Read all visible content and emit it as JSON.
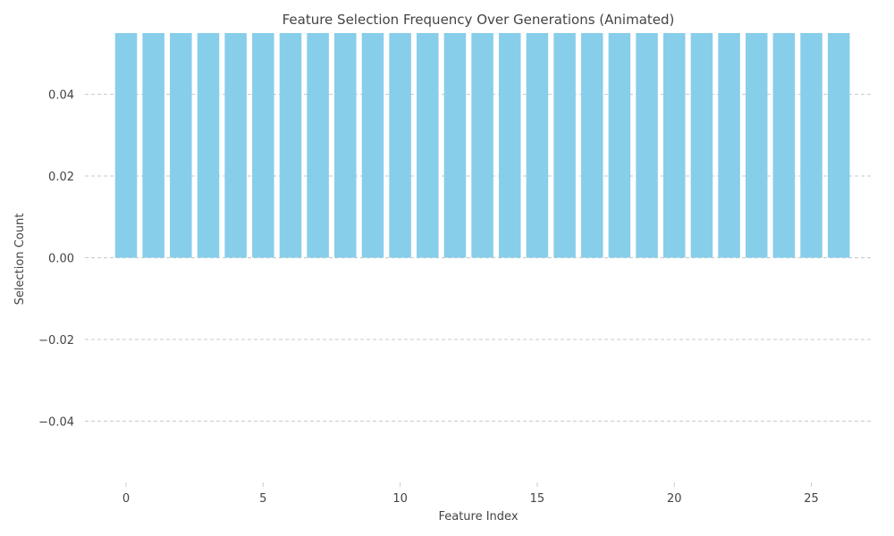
{
  "chart_data": {
    "type": "bar",
    "title": "Feature Selection Frequency Over Generations (Animated)",
    "xlabel": "Feature Index",
    "ylabel": "Selection Count",
    "categories": [
      0,
      1,
      2,
      3,
      4,
      5,
      6,
      7,
      8,
      9,
      10,
      11,
      12,
      13,
      14,
      15,
      16,
      17,
      18,
      19,
      20,
      21,
      22,
      23,
      24,
      25,
      26
    ],
    "values": [
      0.055,
      0.055,
      0.055,
      0.055,
      0.055,
      0.055,
      0.055,
      0.055,
      0.055,
      0.055,
      0.055,
      0.055,
      0.055,
      0.055,
      0.055,
      0.055,
      0.055,
      0.055,
      0.055,
      0.055,
      0.055,
      0.055,
      0.055,
      0.055,
      0.055,
      0.055,
      0.055
    ],
    "xlim": [
      -1.5,
      27.2
    ],
    "ylim": [
      -0.055,
      0.055
    ],
    "xticks": [
      0,
      5,
      10,
      15,
      20,
      25
    ],
    "xtick_labels": [
      "0",
      "5",
      "10",
      "15",
      "20",
      "25"
    ],
    "yticks": [
      -0.04,
      -0.02,
      0.0,
      0.02,
      0.04
    ],
    "ytick_labels": [
      "−0.04",
      "−0.02",
      "0.00",
      "0.02",
      "0.04"
    ],
    "grid": "y-dashed",
    "bar_color": "#87ceeb"
  }
}
